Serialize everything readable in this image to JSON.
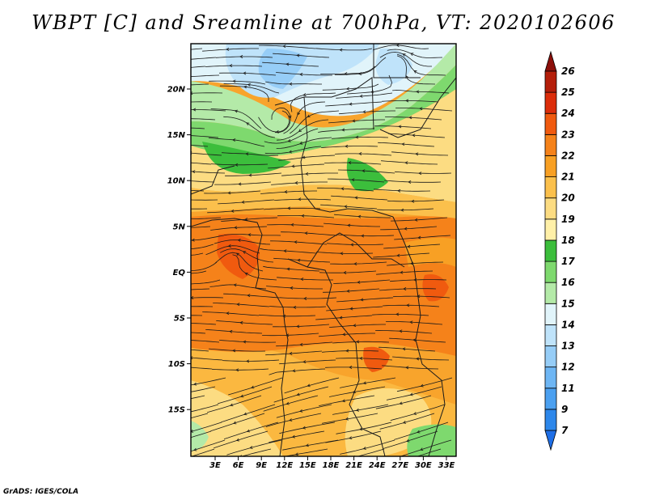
{
  "title": "WBPT [C] and Sreamline at 700hPa, VT: 2020102606",
  "credit": "GrADS: IGES/COLA",
  "map": {
    "lat_labels": [
      "20N",
      "15N",
      "10N",
      "5N",
      "EQ",
      "5S",
      "10S",
      "15S"
    ],
    "lon_labels": [
      "3E",
      "6E",
      "9E",
      "12E",
      "15E",
      "18E",
      "21E",
      "24E",
      "27E",
      "30E",
      "33E"
    ],
    "variable": "WBPT",
    "units": "C",
    "level": "700hPa",
    "valid_time": "2020102606"
  },
  "colorbar": {
    "labels": [
      "7",
      "9",
      "11",
      "12",
      "13",
      "14",
      "15",
      "16",
      "17",
      "18",
      "19",
      "20",
      "21",
      "22",
      "23",
      "24",
      "25",
      "26"
    ],
    "colors": [
      "#1e6ee6",
      "#2d87ea",
      "#4ba0f0",
      "#6eb6f4",
      "#96cdf7",
      "#bfe3fa",
      "#e1f4fa",
      "#b4eaa8",
      "#7ed96e",
      "#3cbe3c",
      "#fff0a8",
      "#fcdc82",
      "#fbc04c",
      "#f8a024",
      "#f5821a",
      "#f05a0f",
      "#dc2d0a",
      "#b41e0a",
      "#8c0f0a"
    ]
  }
}
